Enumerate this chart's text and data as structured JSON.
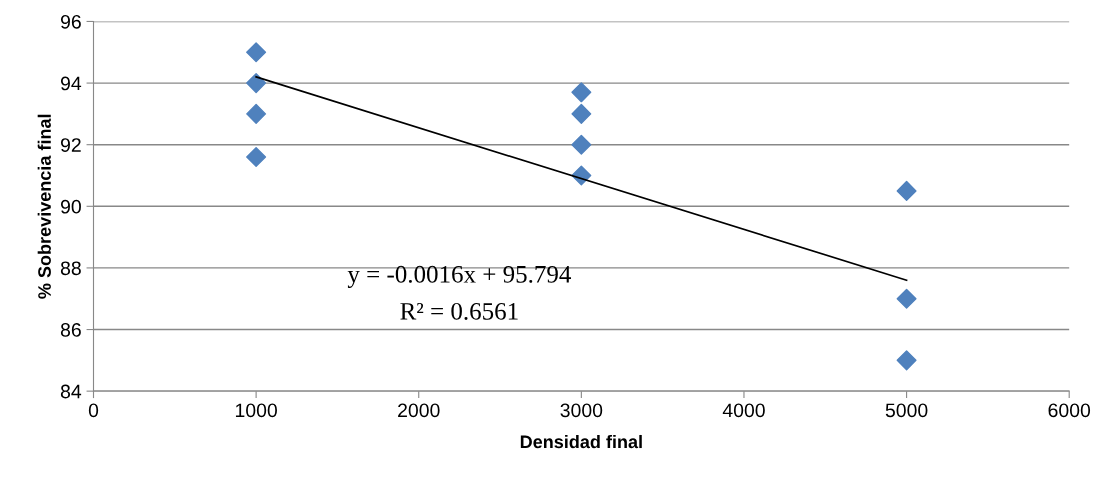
{
  "chart_data": {
    "type": "scatter",
    "xlabel": "Densidad final",
    "ylabel": "% Sobrevivencia final",
    "xlim": [
      0,
      6000
    ],
    "xticks": [
      0,
      1000,
      2000,
      3000,
      4000,
      5000,
      6000
    ],
    "ylim": [
      84,
      96
    ],
    "yticks": [
      84,
      86,
      88,
      90,
      92,
      94,
      96
    ],
    "grid": "y",
    "legend": false,
    "marker": "diamond",
    "series": [
      {
        "color": "#4f81bd",
        "x": [
          1000,
          1000,
          1000,
          1000,
          3000,
          3000,
          3000,
          3000,
          5000,
          5000,
          5000
        ],
        "values": [
          95,
          94,
          93,
          91.6,
          93.7,
          93,
          92,
          91,
          90.5,
          87,
          85
        ]
      },
      {
        "type": "line",
        "color": "#000000",
        "marker": "none",
        "x": [
          1000,
          5000
        ],
        "values": [
          94.2,
          87.6
        ]
      }
    ],
    "annotations": [
      "y = -0.0016x + 95.794",
      "R² = 0.6561"
    ]
  }
}
